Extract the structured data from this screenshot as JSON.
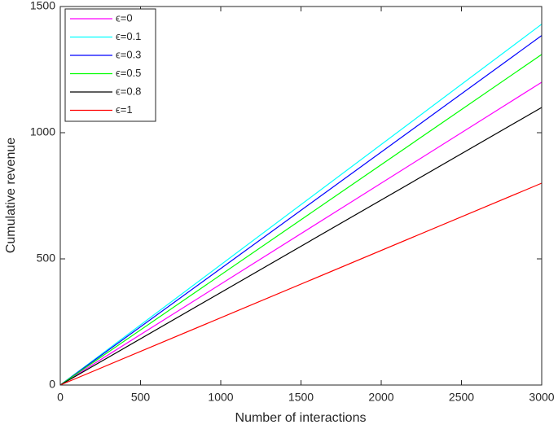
{
  "chart_data": {
    "type": "line",
    "x_label": "Number of interactions",
    "y_label": "Cumulative revenue",
    "x": [
      0,
      3000
    ],
    "series": [
      {
        "name": "ϵ=0",
        "color": "#ff00ff",
        "values": [
          0,
          1200
        ]
      },
      {
        "name": "ϵ=0.1",
        "color": "#00ffff",
        "values": [
          0,
          1430
        ]
      },
      {
        "name": "ϵ=0.3",
        "color": "#0000ff",
        "values": [
          0,
          1385
        ]
      },
      {
        "name": "ϵ=0.5",
        "color": "#00ff00",
        "values": [
          0,
          1310
        ]
      },
      {
        "name": "ϵ=0.8",
        "color": "#000000",
        "values": [
          0,
          1100
        ]
      },
      {
        "name": "ϵ=1",
        "color": "#ff0000",
        "values": [
          0,
          800
        ]
      }
    ],
    "xlim": [
      0,
      3000
    ],
    "xticks": [
      0,
      500,
      1000,
      1500,
      2000,
      2500,
      3000
    ],
    "ylim": [
      0,
      1500
    ],
    "yticks": [
      0,
      500,
      1000,
      1500
    ],
    "grid": false,
    "legend": "top-left"
  }
}
